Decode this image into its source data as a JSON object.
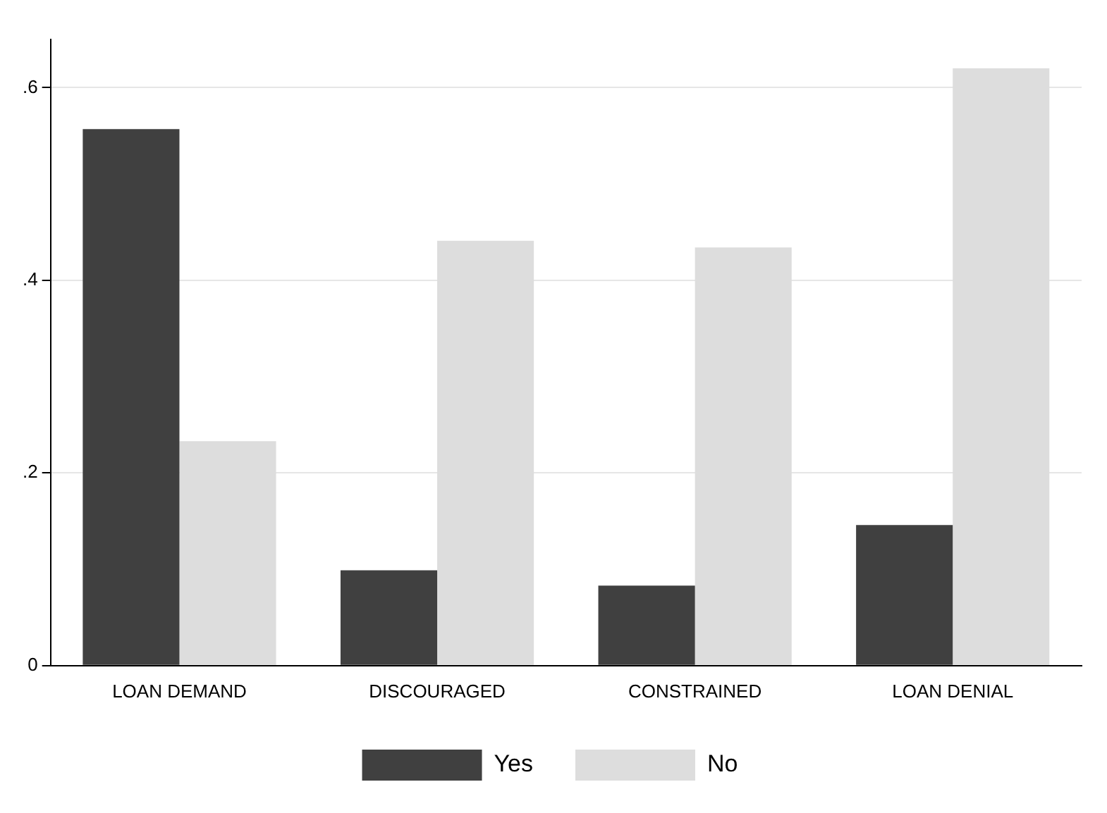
{
  "chart_data": {
    "type": "bar",
    "categories": [
      "LOAN DEMAND",
      "DISCOURAGED",
      "CONSTRAINED",
      "LOAN DENIAL"
    ],
    "series": [
      {
        "name": "Yes",
        "color": "#404040",
        "values": [
          0.557,
          0.099,
          0.083,
          0.146
        ]
      },
      {
        "name": "No",
        "color": "#dddddd",
        "values": [
          0.233,
          0.441,
          0.434,
          0.62
        ]
      }
    ],
    "ylim": [
      0,
      0.65
    ],
    "yticks": [
      0,
      {
        "value": 0.2,
        "label": ".2"
      },
      {
        "value": 0.4,
        "label": ".4"
      },
      {
        "value": 0.6,
        "label": ".6"
      }
    ],
    "grid": "y",
    "legend": "bottom"
  }
}
